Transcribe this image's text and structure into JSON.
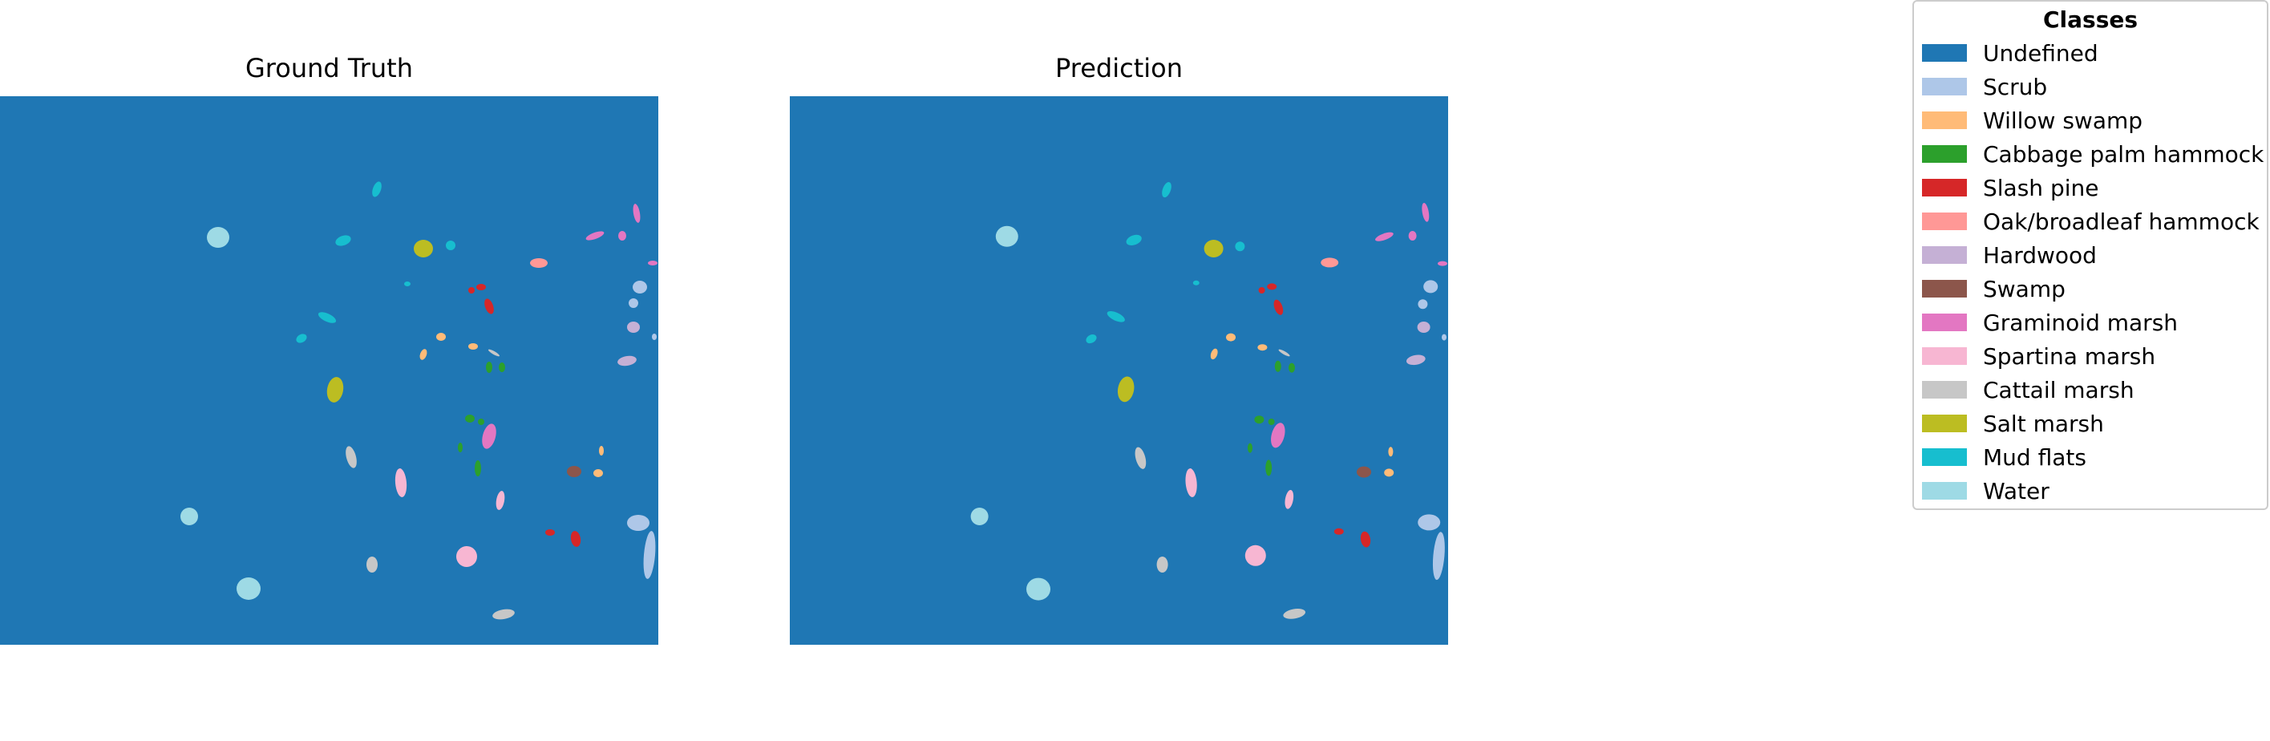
{
  "panels": [
    {
      "title": "Ground Truth"
    },
    {
      "title": "Prediction"
    }
  ],
  "legend": {
    "title": "Classes",
    "items": [
      {
        "label": "Undefined",
        "color": "#1f77b4"
      },
      {
        "label": "Scrub",
        "color": "#aec7e8"
      },
      {
        "label": "Willow swamp",
        "color": "#ffbb78"
      },
      {
        "label": "Cabbage palm hammock",
        "color": "#2ca02c"
      },
      {
        "label": "Slash pine",
        "color": "#d62728"
      },
      {
        "label": "Oak/broadleaf hammock",
        "color": "#ff9896"
      },
      {
        "label": "Hardwood",
        "color": "#c5b0d5"
      },
      {
        "label": "Swamp",
        "color": "#8c564b"
      },
      {
        "label": "Graminoid marsh",
        "color": "#e377c2"
      },
      {
        "label": "Spartina marsh",
        "color": "#f7b6d2"
      },
      {
        "label": "Cattail marsh",
        "color": "#c7c7c7"
      },
      {
        "label": "Salt marsh",
        "color": "#bcbd22"
      },
      {
        "label": "Mud flats",
        "color": "#17becf"
      },
      {
        "label": "Water",
        "color": "#9edae5"
      }
    ]
  }
}
